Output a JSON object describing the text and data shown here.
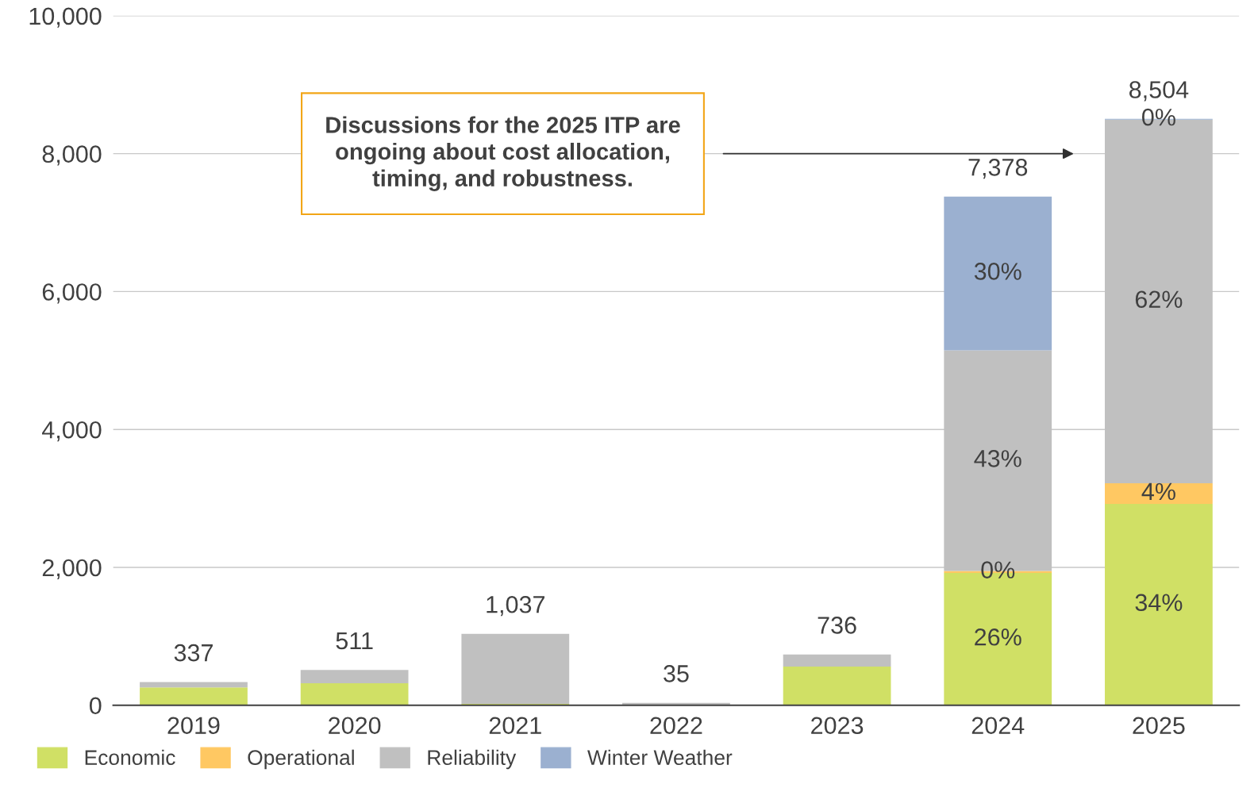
{
  "chart_data": {
    "type": "bar",
    "stacked": true,
    "categories": [
      "2019",
      "2020",
      "2021",
      "2022",
      "2023",
      "2024",
      "2025"
    ],
    "series": [
      {
        "name": "Economic",
        "color": "#d0e065",
        "values": [
          260,
          320,
          20,
          0,
          560,
          1918,
          2920
        ]
      },
      {
        "name": "Operational",
        "color": "#ffc862",
        "values": [
          0,
          0,
          0,
          0,
          0,
          30,
          300
        ]
      },
      {
        "name": "Reliability",
        "color": "#c0c0c0",
        "values": [
          77,
          191,
          1017,
          35,
          176,
          3200,
          5274
        ]
      },
      {
        "name": "Winter Weather",
        "color": "#9bb0d0",
        "values": [
          0,
          0,
          0,
          0,
          0,
          2230,
          10
        ]
      }
    ],
    "totals": [
      "337",
      "511",
      "1,037",
      "35",
      "736",
      "7,378",
      "8,504"
    ],
    "ylim": [
      0,
      10000
    ],
    "yticks": [
      {
        "value": 0,
        "label": "0"
      },
      {
        "value": 2000,
        "label": "2,000"
      },
      {
        "value": 4000,
        "label": "4,000"
      },
      {
        "value": 6000,
        "label": "6,000"
      },
      {
        "value": 8000,
        "label": "8,000"
      },
      {
        "value": 10000,
        "label": "10,000"
      }
    ],
    "grid": "y",
    "legend": "bottom left",
    "annotations": [
      "Discussions for the 2025 ITP are\nongoing about cost allocation,\ntiming, and robustness.",
      "26%",
      "0%",
      "43%",
      "30%",
      "34%",
      "4%",
      "62%",
      "0%"
    ]
  }
}
